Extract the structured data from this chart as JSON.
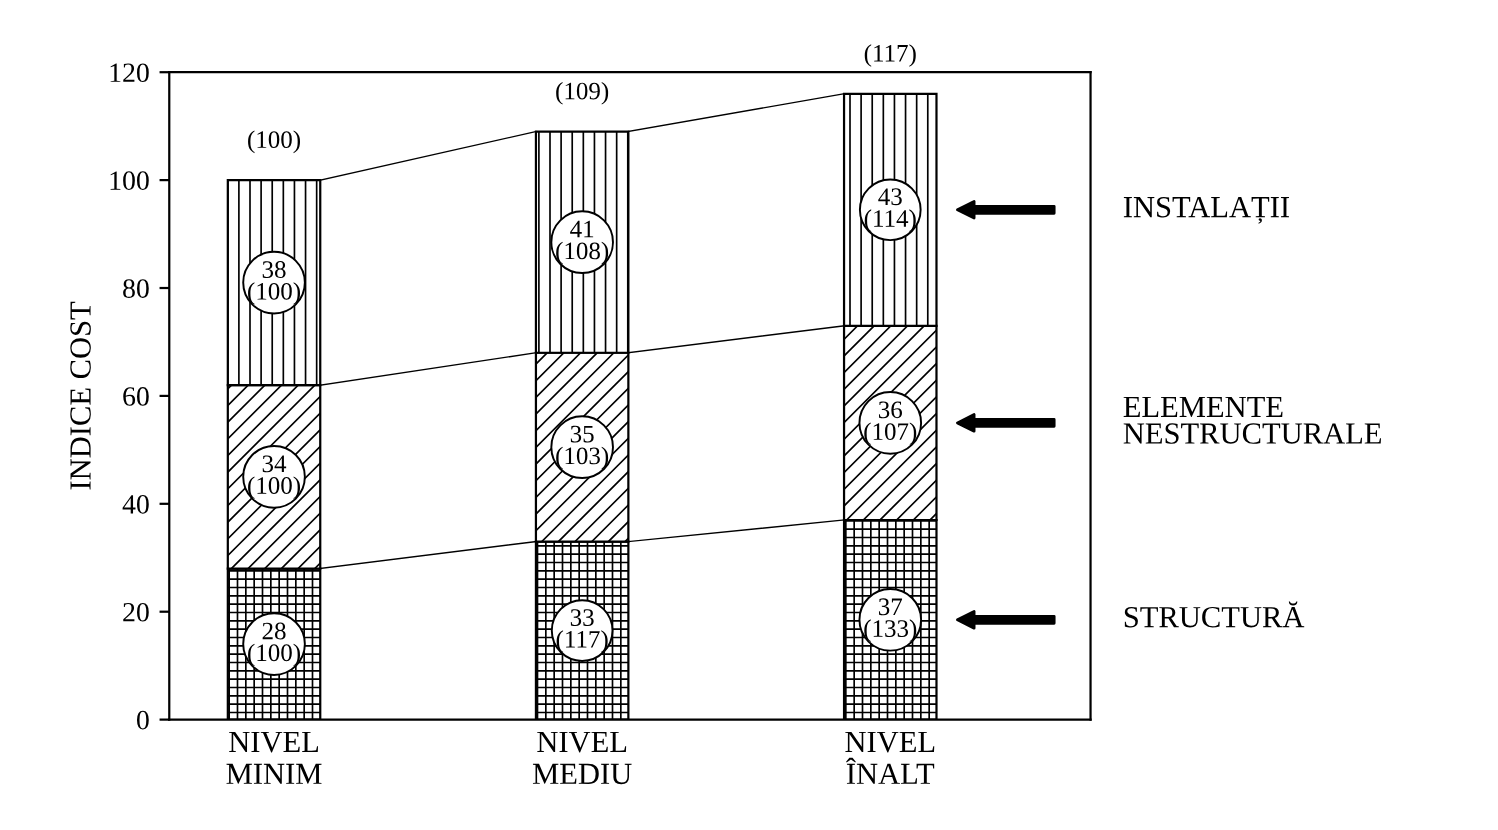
{
  "chart_data": {
    "type": "bar",
    "stacked": true,
    "ylabel": "INDICE COST",
    "categories": [
      "NIVEL\nMINIM",
      "NIVEL\nMEDIU",
      "NIVEL\nÎNALT"
    ],
    "series": [
      {
        "name": "STRUCTURĂ",
        "color": "#000000",
        "values": [
          28,
          33,
          37
        ],
        "value_labels": [
          "28\n(100)",
          "33\n(117)",
          "37\n(133)"
        ]
      },
      {
        "name": "ELEMENTE\nNESTRUCTURALE",
        "color": "#000000",
        "values": [
          34,
          35,
          36
        ],
        "value_labels": [
          "34\n(100)",
          "35\n(103)",
          "36\n(107)"
        ]
      },
      {
        "name": "INSTALAȚII",
        "color": "#000000",
        "values": [
          38,
          41,
          43
        ],
        "value_labels": [
          "38\n(100)",
          "41\n(108)",
          "43\n(114)"
        ]
      }
    ],
    "totals": [
      "(100)",
      "(109)",
      "(117)"
    ],
    "ylim": [
      0,
      120
    ],
    "yticks": [
      0,
      20,
      40,
      60,
      80,
      100,
      120
    ],
    "grid": false
  }
}
